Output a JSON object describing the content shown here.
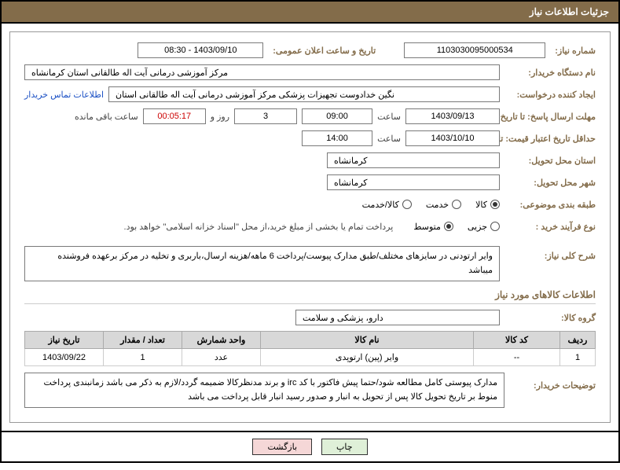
{
  "header": {
    "title": "جزئیات اطلاعات نیاز"
  },
  "fields": {
    "need_no_label": "شماره نیاز:",
    "need_no": "1103030095000534",
    "announce_label": "تاریخ و ساعت اعلان عمومی:",
    "announce": "1403/09/10 - 08:30",
    "buyer_label": "نام دستگاه خریدار:",
    "buyer": "مرکز آموزشی درمانی آیت اله طالقانی استان کرمانشاه",
    "requester_label": "ایجاد کننده درخواست:",
    "requester": "نگین خدادوست تجهیزات پزشکی مرکز آموزشی درمانی آیت اله طالقانی استان",
    "contact_link": "اطلاعات تماس خریدار",
    "deadline_label": "مهلت ارسال پاسخ: تا تاریخ:",
    "deadline_date": "1403/09/13",
    "time_label": "ساعت",
    "deadline_time": "09:00",
    "days_val": "3",
    "days_suffix": "روز و",
    "countdown": "00:05:17",
    "remain_suffix": "ساعت باقی مانده",
    "validity_label": "حداقل تاریخ اعتبار قیمت: تا تاریخ:",
    "validity_date": "1403/10/10",
    "validity_time": "14:00",
    "province_label": "استان محل تحویل:",
    "province": "کرمانشاه",
    "city_label": "شهر محل تحویل:",
    "city": "کرمانشاه",
    "category_label": "طبقه بندی موضوعی:",
    "cat_goods": "کالا",
    "cat_service": "خدمت",
    "cat_both": "کالا/خدمت",
    "process_label": "نوع فرآیند خرید :",
    "proc_partial": "جزیی",
    "proc_medium": "متوسط",
    "process_note": "پرداخت تمام یا بخشی از مبلغ خرید،از محل \"اسناد خزانه اسلامی\" خواهد بود.",
    "desc_label": "شرح کلی نیاز:",
    "desc": "وایر ارتودنی در سایزهای مختلف/طبق مدارک پیوست/پرداخت 6 ماهه/هزینه ارسال،باربری و تخلیه در مرکز برعهده فروشنده میباشد",
    "items_title": "اطلاعات کالاهای مورد نیاز",
    "group_label": "گروه کالا:",
    "group": "دارو، پزشکی و سلامت",
    "buyer_notes_label": "توضیحات خریدار:",
    "buyer_notes": "مدارک پیوستی کامل مطالعه شود/حتما پیش فاکتور با کد irc و برند مدنظرکالا ضمیمه گردد/لازم به ذکر می باشد زمانبندی پرداخت منوط بر تاریخ تحویل کالا  پس از تحویل به انبار و صدور رسید انبار قابل پرداخت می باشد"
  },
  "table": {
    "headers": {
      "row": "ردیف",
      "code": "کد کالا",
      "name": "نام کالا",
      "unit": "واحد شمارش",
      "qty": "تعداد / مقدار",
      "date": "تاریخ نیاز"
    },
    "rows": [
      {
        "row": "1",
        "code": "--",
        "name": "وایر (پین) ارتوپدی",
        "unit": "عدد",
        "qty": "1",
        "date": "1403/09/22"
      }
    ]
  },
  "buttons": {
    "print": "چاپ",
    "back": "بازگشت"
  }
}
